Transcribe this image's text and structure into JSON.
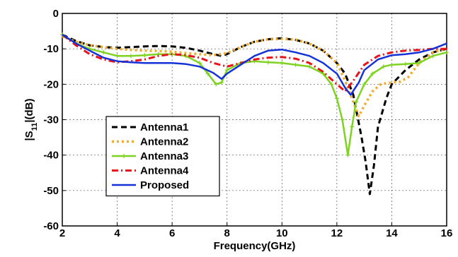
{
  "chart_data": {
    "type": "line",
    "xlabel": "Frequency(GHz)",
    "ylabel": "|S11|(dB)",
    "xlim": [
      2,
      16
    ],
    "ylim": [
      -60,
      0
    ],
    "x_ticks": [
      2,
      4,
      6,
      8,
      10,
      12,
      14,
      16
    ],
    "y_ticks": [
      0,
      -10,
      -20,
      -30,
      -40,
      -50,
      -60
    ],
    "grid": true,
    "legend_position": "lower-left",
    "series": [
      {
        "name": "Antenna1",
        "color": "#000000",
        "style": "dashed",
        "x": [
          2,
          2.5,
          3,
          3.5,
          4,
          4.5,
          5,
          5.5,
          6,
          6.5,
          7,
          7.5,
          7.8,
          8,
          8.5,
          9,
          9.5,
          10,
          10.5,
          11,
          11.5,
          12,
          12.3,
          12.6,
          12.9,
          13.05,
          13.2,
          13.35,
          13.5,
          13.8,
          14,
          14.5,
          15,
          15.5,
          16
        ],
        "y": [
          -6,
          -7.8,
          -9,
          -9.5,
          -9.7,
          -9.5,
          -9.3,
          -9.2,
          -9.3,
          -9.7,
          -10.5,
          -11.5,
          -12,
          -11.5,
          -9.5,
          -8,
          -7.3,
          -7,
          -7.5,
          -8.5,
          -10.5,
          -14,
          -17,
          -23,
          -35,
          -42,
          -51,
          -43,
          -32,
          -24,
          -20,
          -16,
          -13,
          -11,
          -10
        ]
      },
      {
        "name": "Antenna2",
        "color": "#f0ad2d",
        "style": "dotted",
        "x": [
          2,
          2.5,
          3,
          3.5,
          4,
          4.5,
          5,
          5.5,
          6,
          6.5,
          7,
          7.5,
          8,
          8.5,
          9,
          9.5,
          10,
          10.5,
          11,
          11.5,
          12,
          12.3,
          12.6,
          12.8,
          13,
          13.3,
          13.6,
          14,
          14.3,
          14.6,
          15,
          15.5,
          16
        ],
        "y": [
          -6.5,
          -8,
          -9,
          -9.5,
          -10,
          -10.3,
          -10.5,
          -10.6,
          -10.8,
          -11.2,
          -11.5,
          -11.8,
          -11.2,
          -9.5,
          -8,
          -7.3,
          -7.2,
          -7.4,
          -8.5,
          -10.5,
          -14,
          -19,
          -25,
          -29,
          -26,
          -22,
          -20,
          -19.5,
          -19.3,
          -18,
          -14,
          -11,
          -10
        ]
      },
      {
        "name": "Antenna3",
        "color": "#7ed321",
        "style": "solid-plus",
        "x": [
          2,
          2.5,
          3,
          3.5,
          4,
          4.5,
          5,
          5.5,
          6,
          6.5,
          7,
          7.3,
          7.6,
          7.8,
          8,
          8.5,
          9,
          9.5,
          10,
          10.5,
          11,
          11.5,
          11.8,
          12,
          12.2,
          12.4,
          12.55,
          12.7,
          13,
          13.3,
          13.7,
          14,
          14.5,
          15,
          15.5,
          16
        ],
        "y": [
          -6,
          -8.5,
          -10,
          -11,
          -12,
          -12,
          -11.8,
          -11.5,
          -11.5,
          -12,
          -14,
          -17,
          -20,
          -19.5,
          -16,
          -14,
          -13.5,
          -13.8,
          -14,
          -14.5,
          -15,
          -17,
          -20,
          -24,
          -30,
          -40,
          -32,
          -25,
          -20,
          -17,
          -15,
          -14.5,
          -14.3,
          -14,
          -12,
          -11
        ]
      },
      {
        "name": "Antenna4",
        "color": "#e8141b",
        "style": "dashdot",
        "x": [
          2,
          2.5,
          3,
          3.5,
          4,
          4.5,
          5,
          5.5,
          6,
          6.5,
          7,
          7.5,
          8,
          8.5,
          9,
          9.5,
          10,
          10.5,
          11,
          11.5,
          12,
          12.3,
          12.6,
          13,
          13.5,
          14,
          14.5,
          15,
          15.5,
          16
        ],
        "y": [
          -6,
          -9,
          -11.5,
          -13,
          -13.8,
          -13.5,
          -13,
          -12,
          -11.5,
          -11.8,
          -12.5,
          -14,
          -15,
          -14,
          -13,
          -12.5,
          -12.3,
          -12.8,
          -14,
          -16.5,
          -20,
          -22,
          -19,
          -14.5,
          -12,
          -11,
          -10.5,
          -10.3,
          -10,
          -10
        ]
      },
      {
        "name": "Proposed",
        "color": "#1532d8",
        "style": "solid",
        "x": [
          2,
          2.5,
          3,
          3.5,
          4,
          4.5,
          5,
          5.5,
          6,
          6.5,
          7,
          7.5,
          7.8,
          8,
          8.5,
          9,
          9.5,
          10,
          10.5,
          11,
          11.5,
          12,
          12.3,
          12.5,
          12.8,
          13,
          13.5,
          14,
          14.5,
          15,
          15.5,
          16
        ],
        "y": [
          -6,
          -8.5,
          -10.5,
          -12.5,
          -13.5,
          -13.8,
          -14,
          -14,
          -14,
          -14.3,
          -15,
          -16.8,
          -18.5,
          -17,
          -14.5,
          -12,
          -10.5,
          -10.2,
          -11,
          -12,
          -14,
          -17,
          -21,
          -23,
          -19.5,
          -16,
          -13,
          -11.8,
          -11.5,
          -11,
          -10,
          -8.5
        ]
      }
    ]
  }
}
